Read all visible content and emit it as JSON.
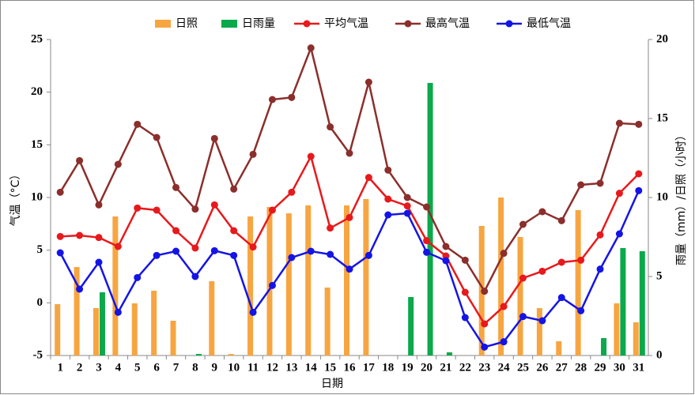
{
  "chart_data": {
    "type": "combo",
    "x_label": "日期",
    "y_label": "气温（°C）",
    "y2_label": "雨量（mm）/日照（小时）",
    "categories": [
      "1",
      "2",
      "3",
      "4",
      "5",
      "6",
      "7",
      "8",
      "9",
      "10",
      "11",
      "12",
      "13",
      "14",
      "15",
      "16",
      "17",
      "18",
      "19",
      "20",
      "21",
      "22",
      "23",
      "24",
      "25",
      "26",
      "27",
      "28",
      "29",
      "30",
      "31"
    ],
    "ylim": [
      -5,
      25
    ],
    "yticks": [
      -5,
      0,
      5,
      10,
      15,
      20,
      25
    ],
    "y2lim": [
      0,
      20
    ],
    "y2ticks": [
      0,
      5,
      10,
      15,
      20
    ],
    "grid": false,
    "legend": "top",
    "series": [
      {
        "name": "日照",
        "type": "bar",
        "axis": "y2",
        "color": "#f7a541",
        "values": [
          3.25,
          5.6,
          3.0,
          8.8,
          3.3,
          4.1,
          2.2,
          0,
          4.7,
          0.1,
          8.8,
          9.4,
          9.0,
          9.5,
          4.3,
          9.5,
          9.9,
          0,
          0,
          0,
          0,
          0,
          8.2,
          10.0,
          7.5,
          3.0,
          0.9,
          9.2,
          0,
          3.3,
          2.1
        ]
      },
      {
        "name": "日雨量",
        "type": "bar",
        "axis": "y2",
        "color": "#0aa94b",
        "values": [
          0,
          0,
          4.0,
          0,
          0,
          0,
          0,
          0.1,
          0,
          0,
          0,
          0,
          0,
          0,
          0,
          0,
          0,
          0,
          3.7,
          17.25,
          0.2,
          0,
          0,
          0,
          0,
          0,
          0,
          0,
          1.1,
          6.8,
          6.6
        ]
      },
      {
        "name": "平均气温",
        "type": "line",
        "color": "#e8191c",
        "values": [
          6.3,
          6.4,
          6.2,
          5.35,
          9.0,
          8.8,
          6.85,
          5.2,
          9.3,
          6.85,
          5.3,
          8.8,
          10.5,
          13.9,
          7.1,
          8.1,
          11.9,
          9.85,
          9.2,
          5.9,
          4.45,
          1.0,
          -2.0,
          -0.35,
          2.35,
          3.0,
          3.85,
          4.05,
          6.45,
          10.4,
          12.25
        ]
      },
      {
        "name": "最高气温",
        "type": "line",
        "color": "#8b2f2c",
        "values": [
          10.5,
          13.5,
          9.3,
          13.15,
          16.95,
          15.7,
          10.95,
          8.9,
          15.6,
          10.8,
          14.1,
          19.3,
          19.5,
          24.2,
          16.7,
          14.2,
          20.95,
          12.6,
          10.0,
          9.1,
          5.35,
          4.05,
          1.1,
          4.7,
          7.45,
          8.65,
          7.8,
          11.2,
          11.35,
          17.05,
          16.95
        ]
      },
      {
        "name": "最低气温",
        "type": "line",
        "color": "#1414e6",
        "values": [
          4.75,
          1.3,
          3.85,
          -0.9,
          2.4,
          4.5,
          4.9,
          2.5,
          4.95,
          4.5,
          -0.9,
          1.65,
          4.3,
          4.9,
          4.6,
          3.2,
          4.5,
          8.35,
          8.5,
          4.8,
          4.0,
          -1.4,
          -4.2,
          -3.7,
          -1.3,
          -1.7,
          0.5,
          -0.75,
          3.2,
          6.55,
          10.65
        ]
      }
    ]
  }
}
